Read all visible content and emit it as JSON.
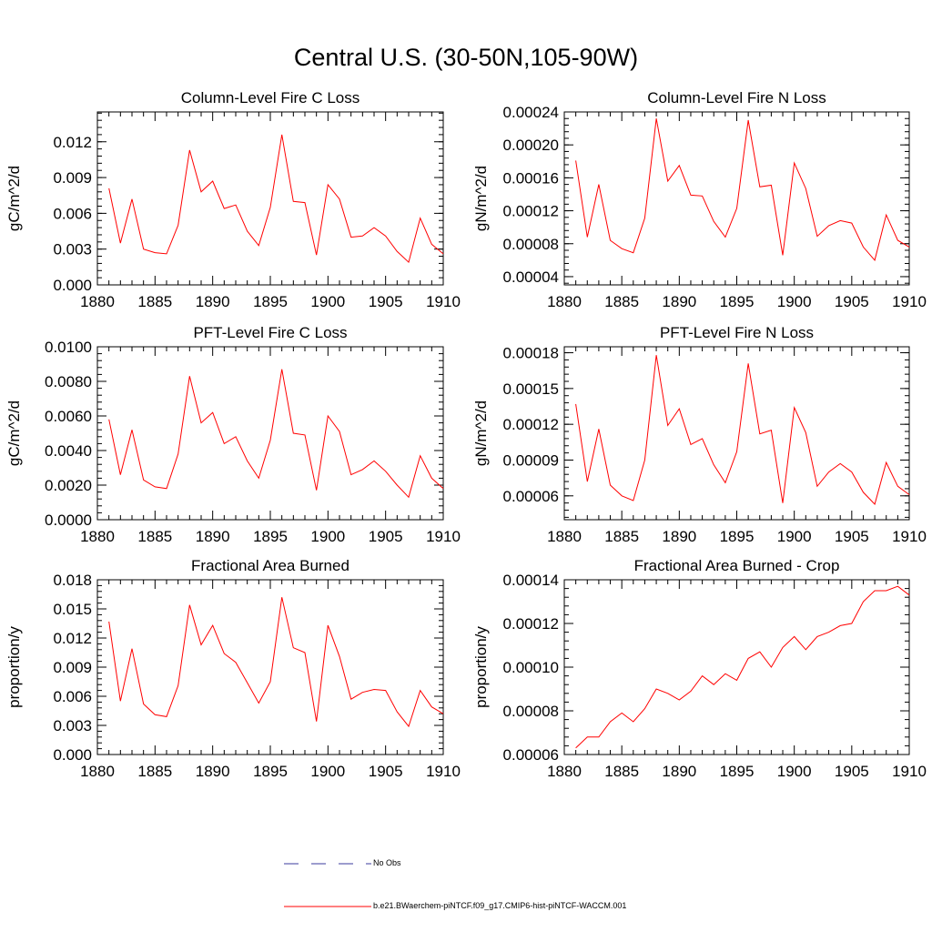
{
  "title": "Central U.S. (30-50N,105-90W)",
  "legend": {
    "obs_label": "No Obs",
    "obs_color": "#3b3b9e",
    "model_label": "b.e21.BWaerchem-piNTCF.f09_g17.CMIP6-hist-piNTCF-WACCM.001",
    "model_color": "#ff0000"
  },
  "chart_data": [
    {
      "type": "line",
      "title": "Column-Level Fire C Loss",
      "ylabel": "gC/m^2/d",
      "xlim": [
        1880,
        1910
      ],
      "ylim": [
        0,
        0.0145
      ],
      "xticks": [
        1880,
        1885,
        1890,
        1895,
        1900,
        1905,
        1910
      ],
      "yticks": [
        0,
        0.003,
        0.006,
        0.009,
        0.012
      ],
      "ytick_labels": [
        "0.000",
        "0.003",
        "0.006",
        "0.009",
        "0.012"
      ],
      "x": [
        1881,
        1882,
        1883,
        1884,
        1885,
        1886,
        1887,
        1888,
        1889,
        1890,
        1891,
        1892,
        1893,
        1894,
        1895,
        1896,
        1897,
        1898,
        1899,
        1900,
        1901,
        1902,
        1903,
        1904,
        1905,
        1906,
        1907,
        1908,
        1909,
        1910
      ],
      "series": [
        {
          "color": "#ff0000",
          "values": [
            0.0081,
            0.0035,
            0.0072,
            0.003,
            0.0027,
            0.0026,
            0.005,
            0.0113,
            0.0078,
            0.0087,
            0.0064,
            0.0067,
            0.0045,
            0.0033,
            0.0065,
            0.0126,
            0.007,
            0.0069,
            0.0025,
            0.0084,
            0.0072,
            0.004,
            0.0041,
            0.0048,
            0.0041,
            0.0028,
            0.0019,
            0.0056,
            0.0034,
            0.0026
          ]
        }
      ]
    },
    {
      "type": "line",
      "title": "Column-Level Fire N Loss",
      "ylabel": "gN/m^2/d",
      "xlim": [
        1880,
        1910
      ],
      "ylim": [
        3e-05,
        0.00024
      ],
      "xticks": [
        1880,
        1885,
        1890,
        1895,
        1900,
        1905,
        1910
      ],
      "yticks": [
        4e-05,
        8e-05,
        0.00012,
        0.00016,
        0.0002,
        0.00024
      ],
      "ytick_labels": [
        "0.00004",
        "0.00008",
        "0.00012",
        "0.00016",
        "0.00020",
        "0.00024"
      ],
      "x": [
        1881,
        1882,
        1883,
        1884,
        1885,
        1886,
        1887,
        1888,
        1889,
        1890,
        1891,
        1892,
        1893,
        1894,
        1895,
        1896,
        1897,
        1898,
        1899,
        1900,
        1901,
        1902,
        1903,
        1904,
        1905,
        1906,
        1907,
        1908,
        1909,
        1910
      ],
      "series": [
        {
          "color": "#ff0000",
          "values": [
            0.000181,
            8.8e-05,
            0.000152,
            8.4e-05,
            7.4e-05,
            6.9e-05,
            0.000111,
            0.000232,
            0.000156,
            0.000175,
            0.000139,
            0.000138,
            0.000107,
            8.8e-05,
            0.000123,
            0.00023,
            0.000149,
            0.000151,
            6.6e-05,
            0.000178,
            0.000147,
            8.9e-05,
            0.000102,
            0.000108,
            0.000105,
            7.6e-05,
            6e-05,
            0.000115,
            8.4e-05,
            7.6e-05
          ]
        }
      ]
    },
    {
      "type": "line",
      "title": "PFT-Level Fire C Loss",
      "ylabel": "gC/m^2/d",
      "xlim": [
        1880,
        1910
      ],
      "ylim": [
        0,
        0.01
      ],
      "xticks": [
        1880,
        1885,
        1890,
        1895,
        1900,
        1905,
        1910
      ],
      "yticks": [
        0,
        0.002,
        0.004,
        0.006,
        0.008,
        0.01
      ],
      "ytick_labels": [
        "0.0000",
        "0.0020",
        "0.0040",
        "0.0060",
        "0.0080",
        "0.0100"
      ],
      "x": [
        1881,
        1882,
        1883,
        1884,
        1885,
        1886,
        1887,
        1888,
        1889,
        1890,
        1891,
        1892,
        1893,
        1894,
        1895,
        1896,
        1897,
        1898,
        1899,
        1900,
        1901,
        1902,
        1903,
        1904,
        1905,
        1906,
        1907,
        1908,
        1909,
        1910
      ],
      "series": [
        {
          "color": "#ff0000",
          "values": [
            0.0058,
            0.0026,
            0.0052,
            0.0023,
            0.0019,
            0.0018,
            0.0038,
            0.0083,
            0.0056,
            0.0062,
            0.0044,
            0.0048,
            0.0034,
            0.0024,
            0.0046,
            0.0087,
            0.005,
            0.0049,
            0.0017,
            0.006,
            0.0051,
            0.0026,
            0.0029,
            0.0034,
            0.0028,
            0.002,
            0.0013,
            0.0037,
            0.0024,
            0.0018
          ]
        }
      ]
    },
    {
      "type": "line",
      "title": "PFT-Level Fire N Loss",
      "ylabel": "gN/m^2/d",
      "xlim": [
        1880,
        1910
      ],
      "ylim": [
        4e-05,
        0.000185
      ],
      "xticks": [
        1880,
        1885,
        1890,
        1895,
        1900,
        1905,
        1910
      ],
      "yticks": [
        6e-05,
        9e-05,
        0.00012,
        0.00015,
        0.00018
      ],
      "ytick_labels": [
        "0.00006",
        "0.00009",
        "0.00012",
        "0.00015",
        "0.00018"
      ],
      "x": [
        1881,
        1882,
        1883,
        1884,
        1885,
        1886,
        1887,
        1888,
        1889,
        1890,
        1891,
        1892,
        1893,
        1894,
        1895,
        1896,
        1897,
        1898,
        1899,
        1900,
        1901,
        1902,
        1903,
        1904,
        1905,
        1906,
        1907,
        1908,
        1909,
        1910
      ],
      "series": [
        {
          "color": "#ff0000",
          "values": [
            0.000137,
            7.2e-05,
            0.000116,
            6.9e-05,
            6e-05,
            5.6e-05,
            9e-05,
            0.000178,
            0.000119,
            0.000133,
            0.000103,
            0.000108,
            8.6e-05,
            7.1e-05,
            9.7e-05,
            0.000171,
            0.000112,
            0.000115,
            5.4e-05,
            0.000134,
            0.000113,
            6.8e-05,
            8e-05,
            8.7e-05,
            8e-05,
            6.3e-05,
            5.3e-05,
            8.8e-05,
            6.8e-05,
            6.1e-05
          ]
        }
      ]
    },
    {
      "type": "line",
      "title": "Fractional Area Burned",
      "ylabel": "proportion/y",
      "xlim": [
        1880,
        1910
      ],
      "ylim": [
        0,
        0.018
      ],
      "xticks": [
        1880,
        1885,
        1890,
        1895,
        1900,
        1905,
        1910
      ],
      "yticks": [
        0,
        0.003,
        0.006,
        0.009,
        0.012,
        0.015,
        0.018
      ],
      "ytick_labels": [
        "0.000",
        "0.003",
        "0.006",
        "0.009",
        "0.012",
        "0.015",
        "0.018"
      ],
      "x": [
        1881,
        1882,
        1883,
        1884,
        1885,
        1886,
        1887,
        1888,
        1889,
        1890,
        1891,
        1892,
        1893,
        1894,
        1895,
        1896,
        1897,
        1898,
        1899,
        1900,
        1901,
        1902,
        1903,
        1904,
        1905,
        1906,
        1907,
        1908,
        1909,
        1910
      ],
      "series": [
        {
          "color": "#ff0000",
          "values": [
            0.0137,
            0.0055,
            0.0109,
            0.0052,
            0.0041,
            0.0039,
            0.0071,
            0.0154,
            0.0113,
            0.0133,
            0.0104,
            0.0095,
            0.0074,
            0.0053,
            0.0075,
            0.0162,
            0.011,
            0.0105,
            0.0034,
            0.0133,
            0.0101,
            0.0057,
            0.0064,
            0.0067,
            0.0066,
            0.0044,
            0.0029,
            0.0066,
            0.0049,
            0.0042
          ]
        }
      ]
    },
    {
      "type": "line",
      "title": "Fractional Area Burned - Crop",
      "ylabel": "proportion/y",
      "xlim": [
        1880,
        1910
      ],
      "ylim": [
        6e-05,
        0.00014
      ],
      "xticks": [
        1880,
        1885,
        1890,
        1895,
        1900,
        1905,
        1910
      ],
      "yticks": [
        6e-05,
        8e-05,
        0.0001,
        0.00012,
        0.00014
      ],
      "ytick_labels": [
        "0.00006",
        "0.00008",
        "0.00010",
        "0.00012",
        "0.00014"
      ],
      "x": [
        1881,
        1882,
        1883,
        1884,
        1885,
        1886,
        1887,
        1888,
        1889,
        1890,
        1891,
        1892,
        1893,
        1894,
        1895,
        1896,
        1897,
        1898,
        1899,
        1900,
        1901,
        1902,
        1903,
        1904,
        1905,
        1906,
        1907,
        1908,
        1909,
        1910
      ],
      "series": [
        {
          "color": "#ff0000",
          "values": [
            6.3e-05,
            6.8e-05,
            6.8e-05,
            7.5e-05,
            7.9e-05,
            7.5e-05,
            8.1e-05,
            9e-05,
            8.8e-05,
            8.5e-05,
            8.9e-05,
            9.6e-05,
            9.2e-05,
            9.7e-05,
            9.4e-05,
            0.000104,
            0.000107,
            0.0001,
            0.000109,
            0.000114,
            0.000108,
            0.000114,
            0.000116,
            0.000119,
            0.00012,
            0.00013,
            0.000135,
            0.000135,
            0.000137,
            0.000133
          ]
        }
      ]
    }
  ]
}
